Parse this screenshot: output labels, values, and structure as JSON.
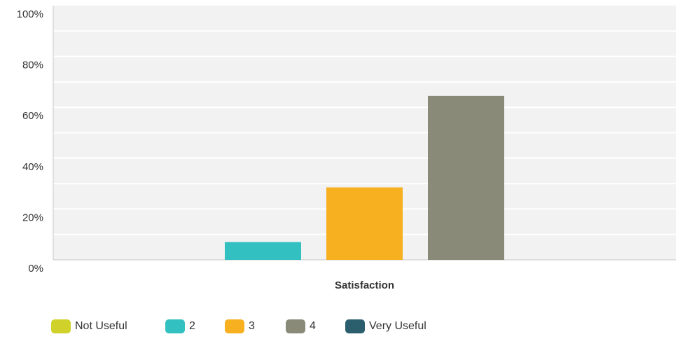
{
  "chart_data": {
    "type": "bar",
    "categories": [
      "Satisfaction"
    ],
    "series": [
      {
        "name": "Not Useful",
        "values": [
          0
        ],
        "color": "#d0d22b"
      },
      {
        "name": "2",
        "values": [
          7
        ],
        "color": "#33c0c0"
      },
      {
        "name": "3",
        "values": [
          28.5
        ],
        "color": "#f6b020"
      },
      {
        "name": "4",
        "values": [
          64.5
        ],
        "color": "#898a78"
      },
      {
        "name": "Very Useful",
        "values": [
          0
        ],
        "color": "#2c5f6e"
      }
    ],
    "ylim": [
      0,
      100
    ],
    "y_ticks": [
      "0%",
      "20%",
      "40%",
      "60%",
      "80%",
      "100%"
    ],
    "y_tick_values": [
      0,
      20,
      40,
      60,
      80,
      100
    ],
    "grid": true,
    "legend_position": "bottom-left",
    "plot_background": "#f2f2f2",
    "grid_color": "#ffffff"
  }
}
